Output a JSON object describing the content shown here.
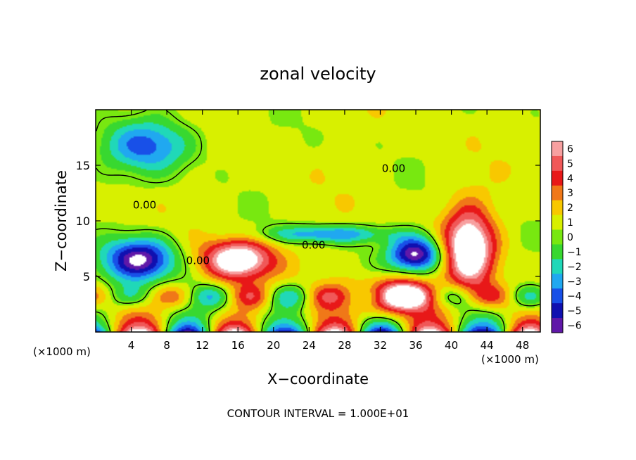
{
  "chart_data": {
    "type": "heatmap",
    "title": "zonal velocity",
    "xlabel": "X−coordinate",
    "ylabel": "Z−coordinate",
    "x_unit_left": "(×1000 m)",
    "x_unit_right": "(×1000 m)",
    "xlim": [
      0,
      50
    ],
    "ylim": [
      0,
      20
    ],
    "x_ticks": [
      {
        "value": 4,
        "label": "4"
      },
      {
        "value": 8,
        "label": "8"
      },
      {
        "value": 12,
        "label": "12"
      },
      {
        "value": 16,
        "label": "16"
      },
      {
        "value": 20,
        "label": "20"
      },
      {
        "value": 24,
        "label": "24"
      },
      {
        "value": 28,
        "label": "28"
      },
      {
        "value": 32,
        "label": "32"
      },
      {
        "value": 36,
        "label": "36"
      },
      {
        "value": 40,
        "label": "40"
      },
      {
        "value": 44,
        "label": "44"
      },
      {
        "value": 48,
        "label": "48"
      }
    ],
    "y_ticks": [
      {
        "value": 5,
        "label": "5"
      },
      {
        "value": 10,
        "label": "10"
      },
      {
        "value": 15,
        "label": "15"
      }
    ],
    "colorbar": {
      "levels": [
        {
          "value": 6,
          "label": "6"
        },
        {
          "value": 5,
          "label": "5"
        },
        {
          "value": 4,
          "label": "4"
        },
        {
          "value": 3,
          "label": "3"
        },
        {
          "value": 2,
          "label": "2"
        },
        {
          "value": 1,
          "label": "1"
        },
        {
          "value": 0,
          "label": "0"
        },
        {
          "value": -1,
          "label": "−1"
        },
        {
          "value": -2,
          "label": "−2"
        },
        {
          "value": -3,
          "label": "−3"
        },
        {
          "value": -4,
          "label": "−4"
        },
        {
          "value": -5,
          "label": "−5"
        },
        {
          "value": -6,
          "label": "−6"
        }
      ],
      "colors": [
        "#f7a0a0",
        "#f05858",
        "#e81818",
        "#f07818",
        "#f8c800",
        "#d8f000",
        "#78e810",
        "#38d830",
        "#20d8b8",
        "#20a8f0",
        "#1850e8",
        "#1010b0",
        "#6018a8"
      ]
    },
    "features": [
      {
        "kind": "jet",
        "sign": -1,
        "x": 6,
        "z": 16.8,
        "rx": 5,
        "rz": 2.4,
        "amp": 4.6
      },
      {
        "kind": "jet",
        "sign": -1,
        "x": 26,
        "z": 8.8,
        "rx": 7,
        "rz": 0.8,
        "amp": 4.3
      },
      {
        "kind": "jet",
        "sign": 1,
        "x": 16,
        "z": 6.5,
        "rx": 4,
        "rz": 1.8,
        "amp": 7.5
      },
      {
        "kind": "jet",
        "sign": 1,
        "x": 42,
        "z": 7.5,
        "rx": 2.8,
        "rz": 3.5,
        "amp": 8
      },
      {
        "kind": "jet",
        "sign": 1,
        "x": 33.5,
        "z": 3.2,
        "rx": 4,
        "rz": 1.6,
        "amp": 7.5
      },
      {
        "kind": "jet",
        "sign": -1,
        "x": 36,
        "z": 7,
        "rx": 3,
        "rz": 1.6,
        "amp": 7.5
      },
      {
        "kind": "jet",
        "sign": -1,
        "x": 5,
        "z": 6.5,
        "rx": 4,
        "rz": 2,
        "amp": 7.5
      }
    ],
    "contour_labels": [
      {
        "x": 5.5,
        "z": 11.1,
        "label": "0.00"
      },
      {
        "x": 33.5,
        "z": 14.4,
        "label": "0.00"
      },
      {
        "x": 24.5,
        "z": 7.5,
        "label": "0.00"
      },
      {
        "x": 11.5,
        "z": 6.1,
        "label": "0.00"
      }
    ],
    "zero_contour_level": 0,
    "footer": "CONTOUR INTERVAL = 1.000E+01"
  }
}
